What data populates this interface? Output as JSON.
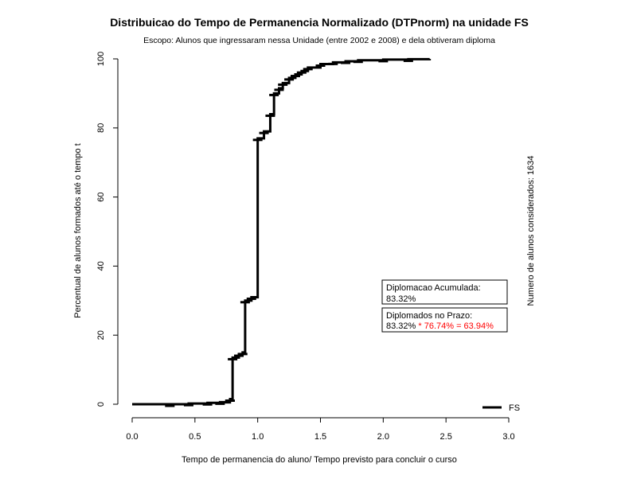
{
  "chart_data": {
    "type": "line",
    "title": "Distribuicao do Tempo de Permanencia Normalizado (DTPnorm) na unidade FS",
    "subtitle": "Escopo: Alunos que ingressaram nessa Unidade (entre 2002 e 2008) e dela obtiveram diploma",
    "xlabel": "Tempo de permanencia do aluno/ Tempo previsto para concluir o curso",
    "ylabel": "Percentual de alunos formados até o tempo t",
    "right_label": "Numero de alunos considerados: 1634",
    "xlim": [
      0,
      3
    ],
    "ylim": [
      0,
      100
    ],
    "x_ticks": [
      "0.0",
      "0.5",
      "1.0",
      "1.5",
      "2.0",
      "2.5",
      "3.0"
    ],
    "y_ticks": [
      "0",
      "20",
      "40",
      "60",
      "80",
      "100"
    ],
    "grid": false,
    "legend_position": "bottom-right",
    "series": [
      {
        "name": "FS",
        "color": "#000000",
        "x": [
          0.0,
          0.3,
          0.45,
          0.6,
          0.7,
          0.75,
          0.78,
          0.8,
          0.85,
          0.88,
          0.9,
          0.95,
          1.0,
          1.05,
          1.1,
          1.13,
          1.17,
          1.2,
          1.25,
          1.3,
          1.35,
          1.4,
          1.5,
          1.6,
          1.7,
          1.8,
          2.0,
          2.2,
          2.37
        ],
        "y": [
          0,
          0,
          0.2,
          0.4,
          0.6,
          1.0,
          1.5,
          13.5,
          14.5,
          15.0,
          30.0,
          31.0,
          77.0,
          79.0,
          84.0,
          90.0,
          91.5,
          93.0,
          94.5,
          95.5,
          96.5,
          97.5,
          98.5,
          99.0,
          99.3,
          99.6,
          99.8,
          99.9,
          100
        ]
      }
    ],
    "annotations": [
      {
        "label": "Diplomacao Acumulada:",
        "value": "83.32%"
      },
      {
        "label": "Diplomados no Prazo:",
        "value": "83.32%",
        "value_extra": " * 76.74% = 63.94%",
        "extra_color": "#ff0000"
      }
    ]
  }
}
